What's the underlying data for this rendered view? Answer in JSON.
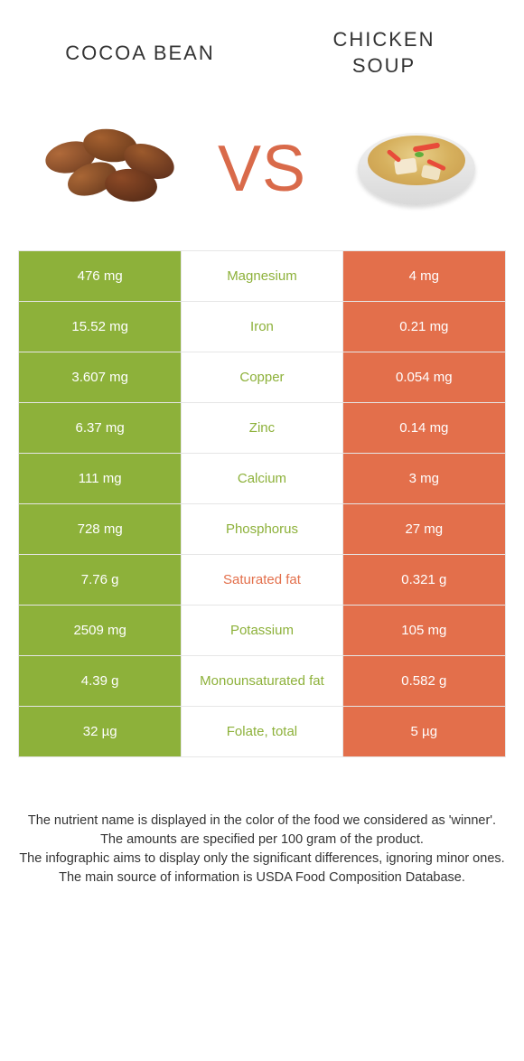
{
  "colors": {
    "left_food": "#8db13a",
    "right_food": "#e36f4b",
    "row_border": "#e6e6e6",
    "text": "#333333",
    "white": "#ffffff",
    "vs": "#d96a4a"
  },
  "foods": {
    "left": {
      "title": "COCOA BEAN"
    },
    "right": {
      "title": "CHICKEN SOUP"
    }
  },
  "vs_label": "VS",
  "rows": [
    {
      "left": "476 mg",
      "name": "Magnesium",
      "right": "4 mg",
      "winner": "left"
    },
    {
      "left": "15.52 mg",
      "name": "Iron",
      "right": "0.21 mg",
      "winner": "left"
    },
    {
      "left": "3.607 mg",
      "name": "Copper",
      "right": "0.054 mg",
      "winner": "left"
    },
    {
      "left": "6.37 mg",
      "name": "Zinc",
      "right": "0.14 mg",
      "winner": "left"
    },
    {
      "left": "111 mg",
      "name": "Calcium",
      "right": "3 mg",
      "winner": "left"
    },
    {
      "left": "728 mg",
      "name": "Phosphorus",
      "right": "27 mg",
      "winner": "left"
    },
    {
      "left": "7.76 g",
      "name": "Saturated fat",
      "right": "0.321 g",
      "winner": "right"
    },
    {
      "left": "2509 mg",
      "name": "Potassium",
      "right": "105 mg",
      "winner": "left"
    },
    {
      "left": "4.39 g",
      "name": "Monounsaturated fat",
      "right": "0.582 g",
      "winner": "left"
    },
    {
      "left": "32 µg",
      "name": "Folate, total",
      "right": "5 µg",
      "winner": "left"
    }
  ],
  "notes": [
    "The nutrient name is displayed in the color of the food we considered as 'winner'.",
    "The amounts are specified per 100 gram of the product.",
    "The infographic aims to display only the significant differences, ignoring minor ones.",
    "The main source of information is USDA Food Composition Database."
  ]
}
